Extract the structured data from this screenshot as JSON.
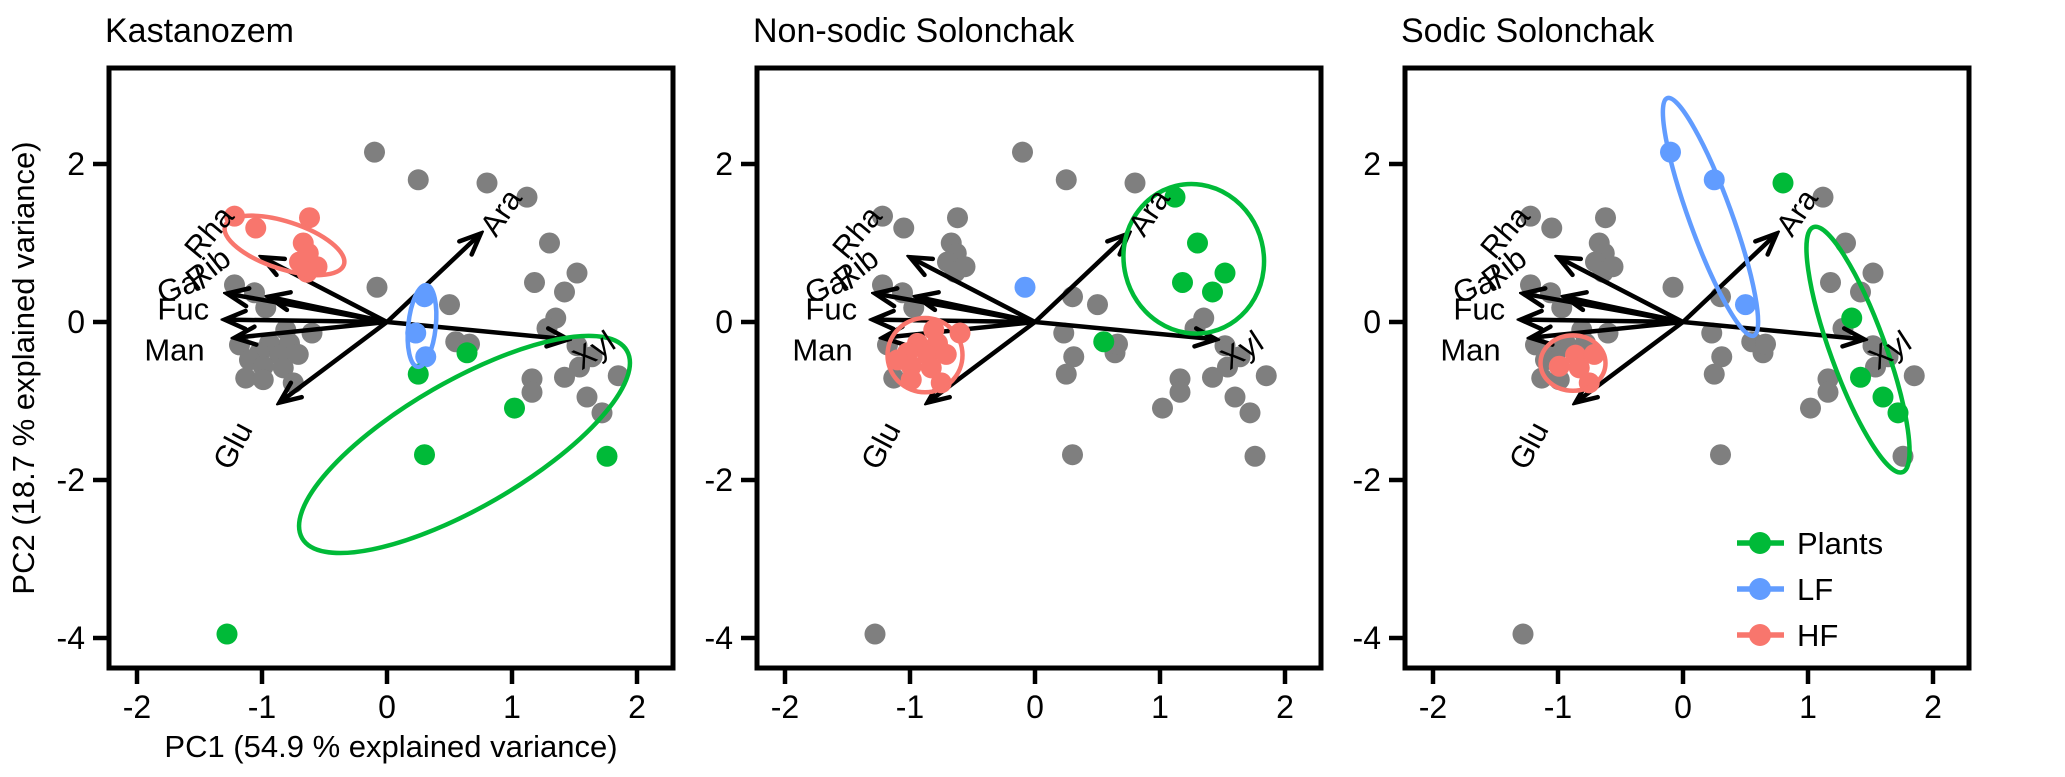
{
  "figure": {
    "x_axis_label": "PC1 (54.9 % explained variance)",
    "y_axis_label": "PC2 (18.7 % explained variance)",
    "colors": {
      "Plants": "#00BA38",
      "LF": "#619CFF",
      "HF": "#F8766D",
      "other": "#7F7F7F",
      "text": "#000000"
    },
    "legend": {
      "items": [
        {
          "key": "G",
          "label": "Plants"
        },
        {
          "key": "B",
          "label": "LF"
        },
        {
          "key": "R",
          "label": "HF"
        }
      ]
    }
  },
  "chart_data": {
    "type": "scatter",
    "subtype": "pca-biplot",
    "x_ticks": [
      -2,
      -1,
      0,
      1,
      2
    ],
    "y_ticks": [
      2,
      0,
      -2,
      -4
    ],
    "xlim": [
      -2.22,
      2.29
    ],
    "ylim": [
      -4.38,
      3.22
    ],
    "panels": [
      {
        "title": "Kastanozem",
        "ellipses": [
          {
            "group": "R",
            "cx": -0.82,
            "cy": 0.97,
            "rx": 0.5,
            "ry": 0.3,
            "rot": 18
          },
          {
            "group": "B",
            "cx": 0.28,
            "cy": -0.05,
            "rx": 0.11,
            "ry": 0.52,
            "rot": 6
          },
          {
            "group": "G",
            "cx": 0.62,
            "cy": -1.55,
            "rx": 1.5,
            "ry": 0.8,
            "rot": -30
          }
        ]
      },
      {
        "title": "Non-sodic Solonchak",
        "ellipses": [
          {
            "group": "R",
            "cx": -0.88,
            "cy": -0.42,
            "rx": 0.3,
            "ry": 0.47,
            "rot": 0
          },
          {
            "group": "G",
            "cx": 1.27,
            "cy": 0.8,
            "rx": 0.56,
            "ry": 0.95,
            "rot": -14
          }
        ]
      },
      {
        "title": "Sodic Solonchak",
        "ellipses": [
          {
            "group": "R",
            "cx": -0.88,
            "cy": -0.52,
            "rx": 0.26,
            "ry": 0.35,
            "rot": 0
          },
          {
            "group": "B",
            "cx": 0.22,
            "cy": 1.33,
            "rx": 0.17,
            "ry": 1.6,
            "rot": -20
          },
          {
            "group": "G",
            "cx": 1.4,
            "cy": -0.35,
            "rx": 0.22,
            "ry": 1.65,
            "rot": -20
          }
        ]
      }
    ],
    "loadings": [
      {
        "name": "Rha",
        "tx": -1.0,
        "ty": 0.82,
        "lx": -1.36,
        "ly": 1.18,
        "lr": -50
      },
      {
        "name": "Rib",
        "tx": -0.95,
        "ty": 0.32,
        "lx": -1.38,
        "ly": 0.7,
        "lr": -38
      },
      {
        "name": "Gal",
        "tx": -1.28,
        "ty": 0.36,
        "lx": -1.62,
        "ly": 0.46,
        "lr": -20
      },
      {
        "name": "Fuc",
        "tx": -1.3,
        "ty": 0.03,
        "lx": -1.63,
        "ly": 0.16,
        "lr": 0
      },
      {
        "name": "Man",
        "tx": -1.22,
        "ty": -0.2,
        "lx": -1.7,
        "ly": -0.36,
        "lr": 0
      },
      {
        "name": "Glu",
        "tx": -0.86,
        "ty": -1.02,
        "lx": -1.16,
        "ly": -1.5,
        "lr": -62
      },
      {
        "name": "Ara",
        "tx": 0.75,
        "ty": 1.12,
        "lx": 0.98,
        "ly": 1.44,
        "lr": -56
      },
      {
        "name": "Xyl",
        "tx": 1.45,
        "ty": -0.22,
        "lx": 1.7,
        "ly": -0.34,
        "lr": -33
      }
    ],
    "points": [
      {
        "x": -0.1,
        "y": 2.15,
        "groups": [
          "g",
          "g",
          "B"
        ]
      },
      {
        "x": 0.25,
        "y": 1.8,
        "groups": [
          "g",
          "g",
          "B"
        ]
      },
      {
        "x": 0.8,
        "y": 1.76,
        "groups": [
          "g",
          "g",
          "G"
        ]
      },
      {
        "x": 1.12,
        "y": 1.58,
        "groups": [
          "g",
          "G",
          "g"
        ]
      },
      {
        "x": -1.22,
        "y": 1.34,
        "groups": [
          "R",
          "g",
          "g"
        ]
      },
      {
        "x": -1.05,
        "y": 1.19,
        "groups": [
          "R",
          "g",
          "g"
        ]
      },
      {
        "x": -0.62,
        "y": 1.32,
        "groups": [
          "R",
          "g",
          "g"
        ]
      },
      {
        "x": -0.67,
        "y": 1.0,
        "groups": [
          "R",
          "g",
          "g"
        ]
      },
      {
        "x": -0.63,
        "y": 0.87,
        "groups": [
          "R",
          "g",
          "g"
        ]
      },
      {
        "x": -0.7,
        "y": 0.76,
        "groups": [
          "R",
          "g",
          "g"
        ]
      },
      {
        "x": -0.56,
        "y": 0.7,
        "groups": [
          "R",
          "g",
          "g"
        ]
      },
      {
        "x": -0.64,
        "y": 0.63,
        "groups": [
          "R",
          "g",
          "g"
        ]
      },
      {
        "x": -1.22,
        "y": 0.47,
        "groups": [
          "g",
          "g",
          "g"
        ]
      },
      {
        "x": -1.06,
        "y": 0.37,
        "groups": [
          "g",
          "g",
          "g"
        ]
      },
      {
        "x": -0.97,
        "y": 0.18,
        "groups": [
          "g",
          "g",
          "g"
        ]
      },
      {
        "x": -0.81,
        "y": -0.1,
        "groups": [
          "g",
          "R",
          "g"
        ]
      },
      {
        "x": -0.6,
        "y": -0.14,
        "groups": [
          "g",
          "R",
          "g"
        ]
      },
      {
        "x": -0.78,
        "y": -0.27,
        "groups": [
          "g",
          "R",
          "g"
        ]
      },
      {
        "x": -0.94,
        "y": -0.27,
        "groups": [
          "g",
          "R",
          "g"
        ]
      },
      {
        "x": -1.18,
        "y": -0.29,
        "groups": [
          "g",
          "g",
          "g"
        ]
      },
      {
        "x": -1.02,
        "y": -0.39,
        "groups": [
          "g",
          "R",
          "g"
        ]
      },
      {
        "x": -0.86,
        "y": -0.42,
        "groups": [
          "g",
          "R",
          "R"
        ]
      },
      {
        "x": -1.1,
        "y": -0.48,
        "groups": [
          "g",
          "R",
          "g"
        ]
      },
      {
        "x": -0.71,
        "y": -0.41,
        "groups": [
          "g",
          "R",
          "R"
        ]
      },
      {
        "x": -0.99,
        "y": -0.56,
        "groups": [
          "g",
          "R",
          "R"
        ]
      },
      {
        "x": -0.83,
        "y": -0.58,
        "groups": [
          "g",
          "R",
          "R"
        ]
      },
      {
        "x": -1.13,
        "y": -0.71,
        "groups": [
          "g",
          "g",
          "g"
        ]
      },
      {
        "x": -0.99,
        "y": -0.73,
        "groups": [
          "g",
          "R",
          "g"
        ]
      },
      {
        "x": -0.75,
        "y": -0.77,
        "groups": [
          "g",
          "R",
          "R"
        ]
      },
      {
        "x": -0.08,
        "y": 0.44,
        "groups": [
          "g",
          "B",
          "g"
        ]
      },
      {
        "x": 0.3,
        "y": 0.32,
        "groups": [
          "B",
          "g",
          "g"
        ]
      },
      {
        "x": 0.23,
        "y": -0.14,
        "groups": [
          "B",
          "g",
          "g"
        ]
      },
      {
        "x": 0.31,
        "y": -0.44,
        "groups": [
          "B",
          "g",
          "g"
        ]
      },
      {
        "x": 0.5,
        "y": 0.22,
        "groups": [
          "g",
          "g",
          "B"
        ]
      },
      {
        "x": 0.64,
        "y": -0.39,
        "groups": [
          "G",
          "g",
          "g"
        ]
      },
      {
        "x": 0.25,
        "y": -0.66,
        "groups": [
          "G",
          "g",
          "g"
        ]
      },
      {
        "x": 1.3,
        "y": 1.0,
        "groups": [
          "g",
          "G",
          "g"
        ]
      },
      {
        "x": 1.18,
        "y": 0.5,
        "groups": [
          "g",
          "G",
          "g"
        ]
      },
      {
        "x": 1.52,
        "y": 0.62,
        "groups": [
          "g",
          "G",
          "g"
        ]
      },
      {
        "x": 1.42,
        "y": 0.38,
        "groups": [
          "g",
          "G",
          "g"
        ]
      },
      {
        "x": 1.35,
        "y": 0.05,
        "groups": [
          "g",
          "g",
          "G"
        ]
      },
      {
        "x": 1.28,
        "y": -0.08,
        "groups": [
          "g",
          "g",
          "g"
        ]
      },
      {
        "x": 0.55,
        "y": -0.25,
        "groups": [
          "g",
          "G",
          "g"
        ]
      },
      {
        "x": 1.02,
        "y": -1.09,
        "groups": [
          "G",
          "g",
          "g"
        ]
      },
      {
        "x": 1.52,
        "y": -0.3,
        "groups": [
          "g",
          "g",
          "g"
        ]
      },
      {
        "x": 1.64,
        "y": -0.44,
        "groups": [
          "g",
          "g",
          "g"
        ]
      },
      {
        "x": 1.54,
        "y": -0.57,
        "groups": [
          "g",
          "g",
          "g"
        ]
      },
      {
        "x": 1.42,
        "y": -0.7,
        "groups": [
          "g",
          "g",
          "G"
        ]
      },
      {
        "x": 1.6,
        "y": -0.95,
        "groups": [
          "g",
          "g",
          "G"
        ]
      },
      {
        "x": 1.72,
        "y": -1.15,
        "groups": [
          "g",
          "g",
          "G"
        ]
      },
      {
        "x": 1.16,
        "y": -0.72,
        "groups": [
          "g",
          "g",
          "g"
        ]
      },
      {
        "x": 1.16,
        "y": -0.89,
        "groups": [
          "g",
          "g",
          "g"
        ]
      },
      {
        "x": 0.66,
        "y": -0.28,
        "groups": [
          "g",
          "g",
          "g"
        ]
      },
      {
        "x": 1.85,
        "y": -0.68,
        "groups": [
          "g",
          "g",
          "g"
        ]
      },
      {
        "x": 0.3,
        "y": -1.68,
        "groups": [
          "G",
          "g",
          "g"
        ]
      },
      {
        "x": 1.76,
        "y": -1.7,
        "groups": [
          "G",
          "g",
          "g"
        ]
      },
      {
        "x": -1.28,
        "y": -3.95,
        "groups": [
          "G",
          "g",
          "g"
        ]
      }
    ]
  }
}
